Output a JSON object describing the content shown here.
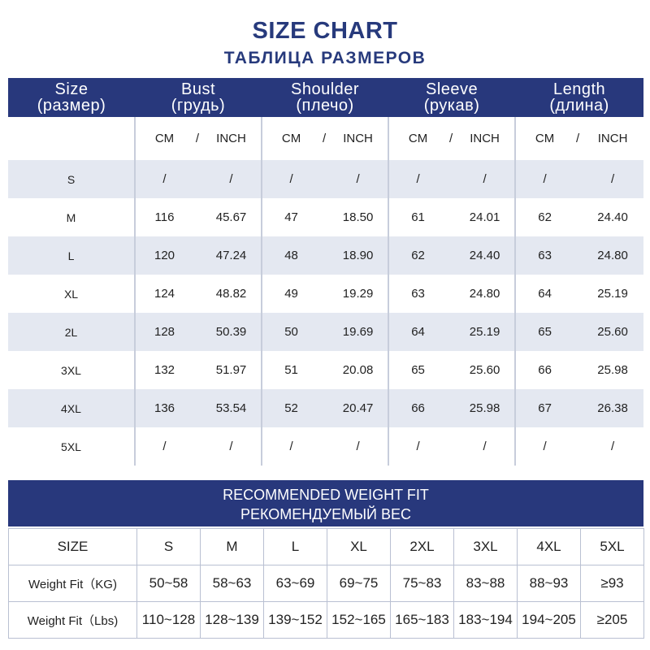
{
  "header": {
    "title": "SIZE CHART",
    "subtitle": "ТАБЛИЦА РАЗМЕРОВ"
  },
  "size_table": {
    "columns": [
      {
        "en": "Size",
        "ru": "(размер)"
      },
      {
        "en": "Bust",
        "ru": "(грудь)"
      },
      {
        "en": "Shoulder",
        "ru": "(плечо)"
      },
      {
        "en": "Sleeve",
        "ru": "(рукав)"
      },
      {
        "en": "Length",
        "ru": "(длина)"
      }
    ],
    "unit_cm": "CM",
    "unit_sep": "/",
    "unit_inch": "INCH",
    "rows": [
      {
        "size": "S",
        "bust_cm": "/",
        "bust_in": "/",
        "shoulder_cm": "/",
        "shoulder_in": "/",
        "sleeve_cm": "/",
        "sleeve_in": "/",
        "length_cm": "/",
        "length_in": "/"
      },
      {
        "size": "M",
        "bust_cm": "116",
        "bust_in": "45.67",
        "shoulder_cm": "47",
        "shoulder_in": "18.50",
        "sleeve_cm": "61",
        "sleeve_in": "24.01",
        "length_cm": "62",
        "length_in": "24.40"
      },
      {
        "size": "L",
        "bust_cm": "120",
        "bust_in": "47.24",
        "shoulder_cm": "48",
        "shoulder_in": "18.90",
        "sleeve_cm": "62",
        "sleeve_in": "24.40",
        "length_cm": "63",
        "length_in": "24.80"
      },
      {
        "size": "XL",
        "bust_cm": "124",
        "bust_in": "48.82",
        "shoulder_cm": "49",
        "shoulder_in": "19.29",
        "sleeve_cm": "63",
        "sleeve_in": "24.80",
        "length_cm": "64",
        "length_in": "25.19"
      },
      {
        "size": "2L",
        "bust_cm": "128",
        "bust_in": "50.39",
        "shoulder_cm": "50",
        "shoulder_in": "19.69",
        "sleeve_cm": "64",
        "sleeve_in": "25.19",
        "length_cm": "65",
        "length_in": "25.60"
      },
      {
        "size": "3XL",
        "bust_cm": "132",
        "bust_in": "51.97",
        "shoulder_cm": "51",
        "shoulder_in": "20.08",
        "sleeve_cm": "65",
        "sleeve_in": "25.60",
        "length_cm": "66",
        "length_in": "25.98"
      },
      {
        "size": "4XL",
        "bust_cm": "136",
        "bust_in": "53.54",
        "shoulder_cm": "52",
        "shoulder_in": "20.47",
        "sleeve_cm": "66",
        "sleeve_in": "25.98",
        "length_cm": "67",
        "length_in": "26.38"
      },
      {
        "size": "5XL",
        "bust_cm": "/",
        "bust_in": "/",
        "shoulder_cm": "/",
        "shoulder_in": "/",
        "sleeve_cm": "/",
        "sleeve_in": "/",
        "length_cm": "/",
        "length_in": "/"
      }
    ]
  },
  "weight_table": {
    "title_en": "RECOMMENDED WEIGHT FIT",
    "title_ru": "РЕКОМЕНДУЕМЫЙ ВЕС",
    "header_label": "SIZE",
    "sizes": [
      "S",
      "M",
      "L",
      "XL",
      "2XL",
      "3XL",
      "4XL",
      "5XL"
    ],
    "rows": [
      {
        "label": "Weight Fit（KG)",
        "values": [
          "50~58",
          "58~63",
          "63~69",
          "69~75",
          "75~83",
          "83~88",
          "88~93",
          "≥93"
        ]
      },
      {
        "label": "Weight Fit（Lbs)",
        "values": [
          "110~128",
          "128~139",
          "139~152",
          "152~165",
          "165~183",
          "183~194",
          "194~205",
          "≥205"
        ]
      }
    ]
  },
  "colors": {
    "header_navy": "#28387c",
    "title_navy": "#273a7c",
    "row_shade": "#e4e8f1"
  }
}
